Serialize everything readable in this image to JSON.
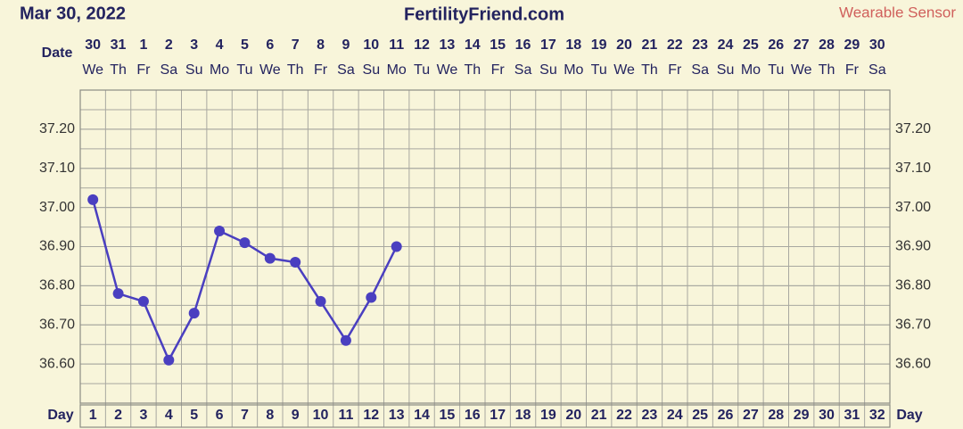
{
  "chart_data": {
    "type": "line",
    "date": "Mar 30, 2022",
    "title": "FertilityFriend.com",
    "annotation": "Wearable Sensor",
    "date_label": "Date",
    "day_label": "Day",
    "dates": [
      "30",
      "31",
      "1",
      "2",
      "3",
      "4",
      "5",
      "6",
      "7",
      "8",
      "9",
      "10",
      "11",
      "12",
      "13",
      "14",
      "15",
      "16",
      "17",
      "18",
      "19",
      "20",
      "21",
      "22",
      "23",
      "24",
      "25",
      "26",
      "27",
      "28",
      "29",
      "30"
    ],
    "weekdays": [
      "We",
      "Th",
      "Fr",
      "Sa",
      "Su",
      "Mo",
      "Tu",
      "We",
      "Th",
      "Fr",
      "Sa",
      "Su",
      "Mo",
      "Tu",
      "We",
      "Th",
      "Fr",
      "Sa",
      "Su",
      "Mo",
      "Tu",
      "We",
      "Th",
      "Fr",
      "Sa",
      "Su",
      "Mo",
      "Tu",
      "We",
      "Th",
      "Fr",
      "Sa"
    ],
    "x": [
      1,
      2,
      3,
      4,
      5,
      6,
      7,
      8,
      9,
      10,
      11,
      12,
      13,
      14,
      15,
      16,
      17,
      18,
      19,
      20,
      21,
      22,
      23,
      24,
      25,
      26,
      27,
      28,
      29,
      30,
      31,
      32
    ],
    "series": [
      {
        "color": "#4a3fc0",
        "values": [
          37.02,
          36.78,
          36.76,
          36.61,
          36.73,
          36.94,
          36.91,
          36.87,
          36.86,
          36.76,
          36.66,
          36.77,
          36.9,
          null,
          null,
          null,
          null,
          null,
          null,
          null,
          null,
          null,
          null,
          null,
          null,
          null,
          null,
          null,
          null,
          null,
          null,
          null
        ]
      }
    ],
    "xlim": [
      0.5,
      32.5
    ],
    "ylim": [
      36.5,
      37.3
    ],
    "yticks": [
      {
        "value": 36.6,
        "label": "36.60"
      },
      {
        "value": 36.7,
        "label": "36.70"
      },
      {
        "value": 36.8,
        "label": "36.80"
      },
      {
        "value": 36.9,
        "label": "36.90"
      },
      {
        "value": 37.0,
        "label": "37.00"
      },
      {
        "value": 37.1,
        "label": "37.10"
      },
      {
        "value": 37.2,
        "label": "37.20"
      }
    ],
    "grid": true
  }
}
